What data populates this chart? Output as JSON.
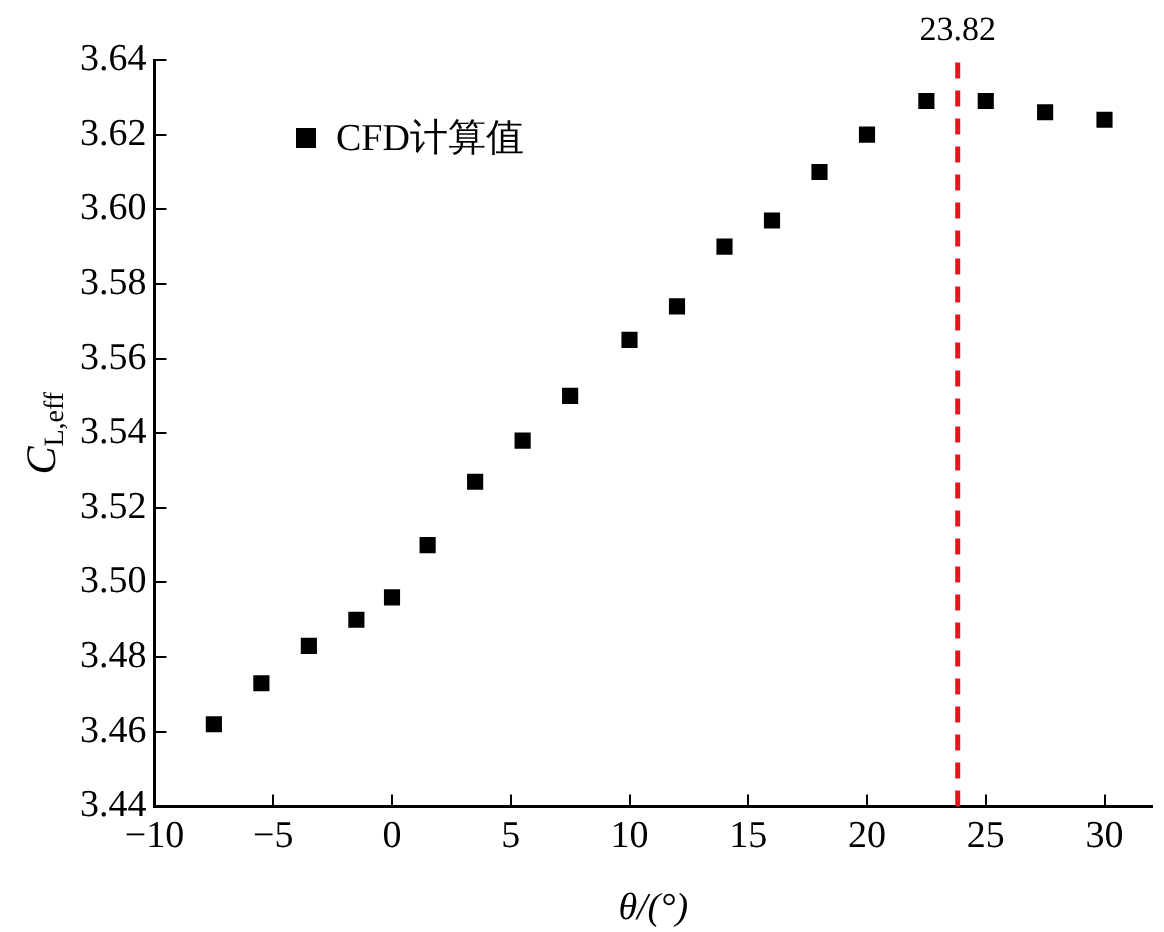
{
  "chart_data": {
    "type": "scatter",
    "xlabel": "θ/(°)",
    "ylabel": "C$_{L,eff}$",
    "x": [
      -7.5,
      -5.5,
      -3.5,
      -1.5,
      0,
      1.5,
      3.5,
      5.5,
      7.5,
      10,
      12,
      14,
      16,
      18,
      20,
      22.5,
      25,
      27.5,
      30
    ],
    "series": [
      {
        "name": "CFD计算值",
        "color": "#000000",
        "values": [
          3.462,
          3.473,
          3.483,
          3.49,
          3.496,
          3.51,
          3.527,
          3.538,
          3.55,
          3.565,
          3.574,
          3.59,
          3.597,
          3.61,
          3.62,
          3.629,
          3.629,
          3.626,
          3.624
        ]
      }
    ],
    "xlim": [
      -10,
      32
    ],
    "xticks": [
      {
        "value": -10,
        "label": "−10"
      },
      {
        "value": -5,
        "label": "−5"
      },
      0,
      5,
      10,
      15,
      20,
      25,
      30
    ],
    "ylim": [
      3.44,
      3.64
    ],
    "yticks": [
      {
        "value": 3.44,
        "label": "3.44"
      },
      {
        "value": 3.46,
        "label": "3.46"
      },
      {
        "value": 3.48,
        "label": "3.48"
      },
      {
        "value": 3.5,
        "label": "3.50"
      },
      {
        "value": 3.52,
        "label": "3.52"
      },
      {
        "value": 3.54,
        "label": "3.54"
      },
      {
        "value": 3.56,
        "label": "3.56"
      },
      {
        "value": 3.58,
        "label": "3.58"
      },
      {
        "value": 3.6,
        "label": "3.60"
      },
      {
        "value": 3.62,
        "label": "3.62"
      },
      {
        "value": 3.64,
        "label": "3.64"
      }
    ],
    "ref_lines": [
      {
        "axis": "x",
        "value": 23.82,
        "label": "23.82",
        "color": "#e8141c",
        "line_style": "dashed"
      }
    ],
    "legend": "top left",
    "marker": "square",
    "grid": false
  }
}
